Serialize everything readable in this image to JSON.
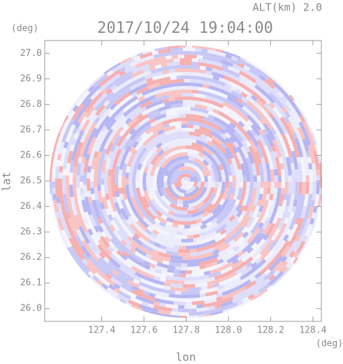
{
  "chart_data": {
    "type": "radar-ppi",
    "title": "2017/10/24 19:04:00",
    "annotation": "ALT(km) 2.0",
    "x_label": "lon",
    "y_label": "lat",
    "x_unit": "(deg)",
    "y_unit": "(deg)",
    "xlim": [
      127.13,
      128.44
    ],
    "ylim": [
      25.95,
      27.05
    ],
    "xticks": [
      127.4,
      127.6,
      127.8,
      {
        "value": 128,
        "label": "128.0"
      },
      128.2,
      128.4
    ],
    "yticks": [
      {
        "value": 26,
        "label": "26.0"
      },
      26.1,
      26.2,
      26.3,
      26.4,
      26.5,
      26.6,
      26.7,
      26.8,
      26.9,
      {
        "value": 27,
        "label": "27.0"
      }
    ]
  }
}
